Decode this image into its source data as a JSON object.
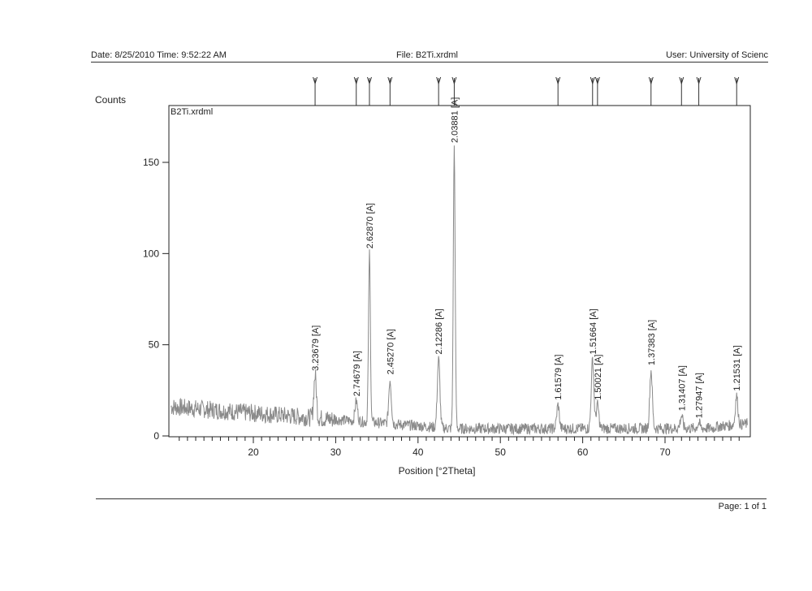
{
  "header": {
    "date": "Date: 8/25/2010 Time: 9:52:22 AM",
    "file": "File: B2Ti.xrdml",
    "user": "User: University of Scienc"
  },
  "footer": {
    "page": "Page: 1 of 1"
  },
  "chart_data": {
    "type": "line",
    "title": "",
    "file_label": "B2Ti.xrdml",
    "ylabel": "Counts",
    "xlabel": "Position [°2Theta]",
    "xlim": [
      10,
      80
    ],
    "ylim": [
      0,
      180
    ],
    "x_ticks": [
      20,
      30,
      40,
      50,
      60,
      70
    ],
    "y_ticks": [
      0,
      50,
      100,
      150
    ],
    "peaks": [
      {
        "position": 27.5,
        "height": 33,
        "label": "3.23679 [A]"
      },
      {
        "position": 32.5,
        "height": 19,
        "label": "2.74679 [A]"
      },
      {
        "position": 34.1,
        "height": 100,
        "label": "2.62870 [A]"
      },
      {
        "position": 36.6,
        "height": 31,
        "label": "2.45270 [A]"
      },
      {
        "position": 42.5,
        "height": 42,
        "label": "2.12286 [A]"
      },
      {
        "position": 44.4,
        "height": 158,
        "label": "2.03881 [A]"
      },
      {
        "position": 57.0,
        "height": 17,
        "label": "1.61579 [A]"
      },
      {
        "position": 61.2,
        "height": 42,
        "label": "1.51664 [A]"
      },
      {
        "position": 61.8,
        "height": 17,
        "label": "1.50021 [A]"
      },
      {
        "position": 68.3,
        "height": 36,
        "label": "1.37383 [A]"
      },
      {
        "position": 72.0,
        "height": 11,
        "label": "1.31407 [A]"
      },
      {
        "position": 74.1,
        "height": 7,
        "label": "1.27947 [A]"
      },
      {
        "position": 78.7,
        "height": 22,
        "label": "1.21531 [A]"
      }
    ],
    "grid": false,
    "line_color": "#8a8a8a"
  }
}
